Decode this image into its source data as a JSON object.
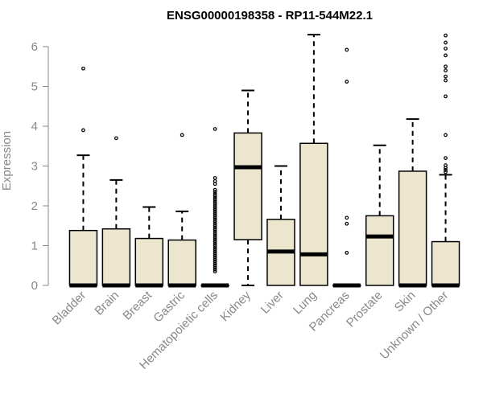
{
  "chart_data": {
    "type": "boxplot",
    "title": "ENSG00000198358 - RP11-544M22.1",
    "xlabel": "",
    "ylabel": "Expression",
    "ylim": [
      0,
      6.3
    ],
    "yticks": [
      0,
      1,
      2,
      3,
      4,
      5,
      6
    ],
    "colors": {
      "box_fill": "#ede6cf",
      "stroke": "#000000",
      "axis": "#888888"
    },
    "categories": [
      "Bladder",
      "Brain",
      "Breast",
      "Gastric",
      "Hematopoietic cells",
      "Kidney",
      "Liver",
      "Lung",
      "Pancreas",
      "Prostate",
      "Skin",
      "Unknown / Other"
    ],
    "boxes": [
      {
        "name": "Bladder",
        "whisker_low": 0,
        "q1": 0,
        "median": 0,
        "q3": 1.38,
        "whisker_high": 3.27,
        "outliers": [
          3.9,
          5.45
        ]
      },
      {
        "name": "Brain",
        "whisker_low": 0,
        "q1": 0,
        "median": 0,
        "q3": 1.42,
        "whisker_high": 2.65,
        "outliers": [
          3.7
        ]
      },
      {
        "name": "Breast",
        "whisker_low": 0,
        "q1": 0,
        "median": 0,
        "q3": 1.18,
        "whisker_high": 1.97,
        "outliers": []
      },
      {
        "name": "Gastric",
        "whisker_low": 0,
        "q1": 0,
        "median": 0,
        "q3": 1.14,
        "whisker_high": 1.86,
        "outliers": [
          3.78
        ]
      },
      {
        "name": "Hematopoietic cells",
        "whisker_low": 0,
        "q1": 0,
        "median": 0,
        "q3": 0,
        "whisker_high": 0,
        "outliers": [
          0.35,
          0.4,
          0.45,
          0.5,
          0.55,
          0.6,
          0.65,
          0.7,
          0.75,
          0.8,
          0.85,
          0.9,
          0.95,
          1.0,
          1.05,
          1.1,
          1.15,
          1.2,
          1.25,
          1.3,
          1.35,
          1.4,
          1.45,
          1.5,
          1.55,
          1.6,
          1.65,
          1.7,
          1.75,
          1.8,
          1.85,
          1.9,
          1.95,
          2.0,
          2.05,
          2.1,
          2.15,
          2.2,
          2.25,
          2.3,
          2.35,
          2.4,
          2.55,
          2.62,
          2.7,
          3.93
        ]
      },
      {
        "name": "Kidney",
        "whisker_low": 0,
        "q1": 1.15,
        "median": 2.97,
        "q3": 3.83,
        "whisker_high": 4.9,
        "outliers": []
      },
      {
        "name": "Liver",
        "whisker_low": 0,
        "q1": 0,
        "median": 0.85,
        "q3": 1.66,
        "whisker_high": 3.0,
        "outliers": []
      },
      {
        "name": "Lung",
        "whisker_low": 0,
        "q1": 0,
        "median": 0.78,
        "q3": 3.57,
        "whisker_high": 6.3,
        "outliers": []
      },
      {
        "name": "Pancreas",
        "whisker_low": 0,
        "q1": 0,
        "median": 0,
        "q3": 0,
        "whisker_high": 0,
        "outliers": [
          0.82,
          1.55,
          1.7,
          5.12,
          5.92
        ]
      },
      {
        "name": "Prostate",
        "whisker_low": 0,
        "q1": 0,
        "median": 1.23,
        "q3": 1.75,
        "whisker_high": 3.52,
        "outliers": []
      },
      {
        "name": "Skin",
        "whisker_low": 0,
        "q1": 0,
        "median": 0,
        "q3": 2.87,
        "whisker_high": 4.18,
        "outliers": []
      },
      {
        "name": "Unknown / Other",
        "whisker_low": 0,
        "q1": 0,
        "median": 0,
        "q3": 1.1,
        "whisker_high": 2.78,
        "outliers": [
          2.85,
          2.9,
          2.95,
          3.02,
          3.2,
          3.78,
          4.75,
          5.15,
          5.25,
          5.4,
          5.5,
          5.78,
          5.95,
          6.1,
          6.28
        ]
      }
    ]
  }
}
